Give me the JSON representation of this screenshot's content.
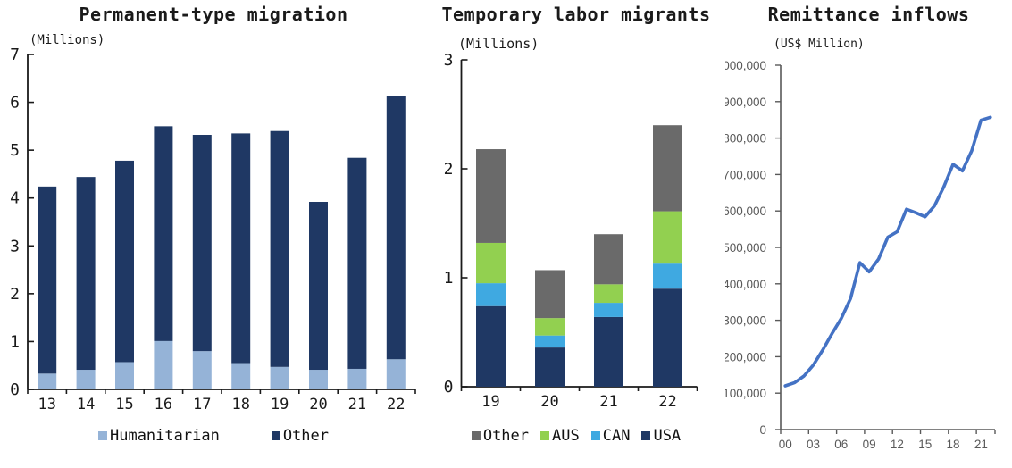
{
  "chart_data": [
    {
      "type": "bar",
      "stacked": true,
      "title": "Permanent-type migration",
      "unit_label": "(Millions)",
      "categories": [
        "13",
        "14",
        "15",
        "16",
        "17",
        "18",
        "19",
        "20",
        "21",
        "22"
      ],
      "series": [
        {
          "name": "Humanitarian",
          "color": "#95b3d7",
          "values": [
            0.33,
            0.41,
            0.57,
            1.01,
            0.8,
            0.55,
            0.47,
            0.41,
            0.43,
            0.63
          ]
        },
        {
          "name": "Other",
          "color": "#1f3864",
          "values": [
            3.91,
            4.03,
            4.21,
            4.49,
            4.52,
            4.8,
            4.93,
            3.51,
            4.41,
            5.51
          ]
        }
      ],
      "totals": [
        4.24,
        4.44,
        4.78,
        5.5,
        5.32,
        5.35,
        5.4,
        3.92,
        4.84,
        6.14
      ],
      "legend": [
        "Humanitarian",
        "Other"
      ],
      "legend_position": "bottom",
      "ylim": [
        0,
        7
      ],
      "ytick_step": 1,
      "ytick_labels": [
        "0",
        "1",
        "2",
        "3",
        "4",
        "5",
        "6",
        "7"
      ],
      "grid": false
    },
    {
      "type": "bar",
      "stacked": true,
      "title": "Temporary labor migrants",
      "unit_label": "(Millions)",
      "categories": [
        "19",
        "20",
        "21",
        "22"
      ],
      "series": [
        {
          "name": "USA",
          "color": "#1f3864",
          "values": [
            0.74,
            0.36,
            0.64,
            0.9
          ]
        },
        {
          "name": "CAN",
          "color": "#3fa9e1",
          "values": [
            0.21,
            0.11,
            0.13,
            0.23
          ]
        },
        {
          "name": "AUS",
          "color": "#92d050",
          "values": [
            0.37,
            0.16,
            0.17,
            0.48
          ]
        },
        {
          "name": "Other",
          "color": "#6a6a6a",
          "values": [
            0.86,
            0.44,
            0.46,
            0.79
          ]
        }
      ],
      "totals": [
        2.18,
        1.07,
        1.4,
        2.4
      ],
      "legend": [
        "Other",
        "AUS",
        "CAN",
        "USA"
      ],
      "legend_position": "bottom",
      "ylim": [
        0,
        3
      ],
      "ytick_step": 1,
      "ytick_labels": [
        "0",
        "1",
        "2",
        "3"
      ],
      "grid": false
    },
    {
      "type": "line",
      "title": "Remittance inflows",
      "unit_label": "(US$ Million)",
      "line_color": "#4472c4",
      "axis_color": "#595959",
      "label_color": "#595959",
      "x": [
        "00",
        "01",
        "02",
        "03",
        "04",
        "05",
        "06",
        "07",
        "08",
        "09",
        "10",
        "11",
        "12",
        "13",
        "14",
        "15",
        "16",
        "17",
        "18",
        "19",
        "20",
        "21",
        "22"
      ],
      "values": [
        120000,
        129000,
        147000,
        177000,
        218000,
        263000,
        305000,
        360000,
        458000,
        433000,
        468000,
        528000,
        543000,
        605000,
        595000,
        584000,
        614000,
        666000,
        728000,
        710000,
        765000,
        849000,
        857000
      ],
      "xtick_labels": [
        "00",
        "03",
        "06",
        "09",
        "12",
        "15",
        "18",
        "21"
      ],
      "xtick_every": 3,
      "ylim": [
        0,
        1000000
      ],
      "ytick_step": 100000,
      "ytick_labels": [
        "0",
        "100,000",
        "200,000",
        "300,000",
        "400,000",
        "500,000",
        "600,000",
        "700,000",
        "800,000",
        "900,000",
        "1,000,000"
      ],
      "grid": false,
      "legend_position": "none"
    }
  ]
}
